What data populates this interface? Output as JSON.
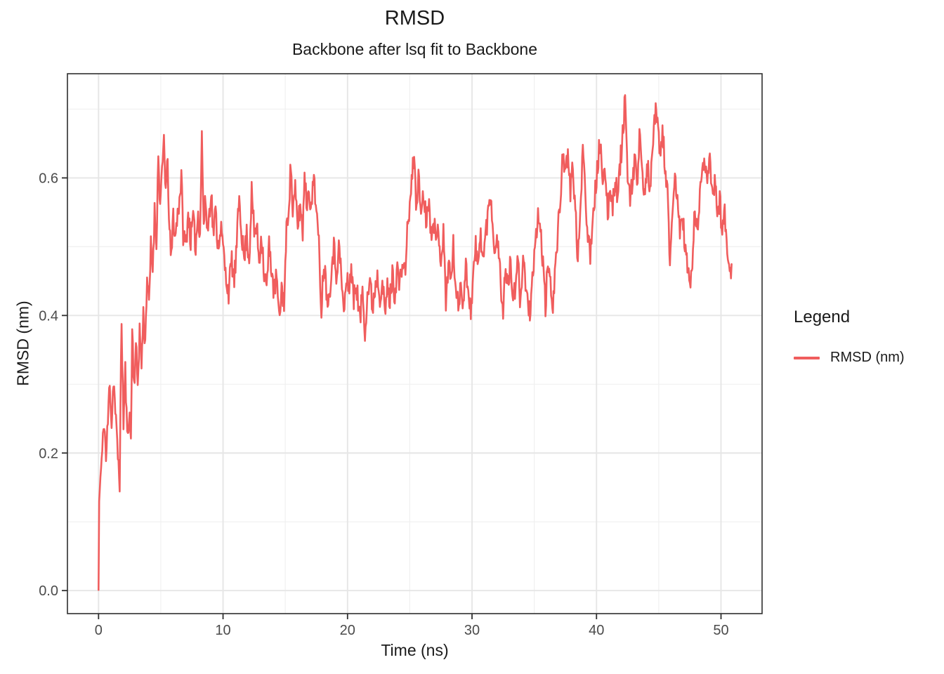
{
  "chart_data": {
    "type": "line",
    "title": "RMSD",
    "subtitle": "Backbone after lsq fit to Backbone",
    "xlabel": "Time (ns)",
    "ylabel": "RMSD (nm)",
    "xlim": [
      -2.5,
      53.3
    ],
    "ylim": [
      -0.0335,
      0.7515
    ],
    "x_major_ticks": [
      0,
      10,
      20,
      30,
      40,
      50
    ],
    "x_tick_labels": [
      "0",
      "10",
      "20",
      "30",
      "40",
      "50"
    ],
    "x_minor_ticks": [
      5,
      15,
      25,
      35,
      45
    ],
    "y_major_ticks": [
      0.0,
      0.2,
      0.4,
      0.6
    ],
    "y_tick_labels": [
      "0.0",
      "0.2",
      "0.4",
      "0.6"
    ],
    "y_minor_ticks": [
      0.1,
      0.3,
      0.5,
      0.7
    ],
    "grid": "major+minor on white panel, black panel border",
    "legend": {
      "title": "Legend",
      "position": "right",
      "entries": [
        {
          "label": "RMSD (nm)",
          "color": "#F05D5D"
        }
      ]
    },
    "series": [
      {
        "name": "RMSD (nm)",
        "color": "#F05D5D",
        "noise": {
          "seed": 11,
          "amplitude": 0.018,
          "dt": 0.05
        },
        "keypoints": [
          [
            0.0,
            0.001
          ],
          [
            0.05,
            0.13
          ],
          [
            0.15,
            0.165
          ],
          [
            0.3,
            0.2
          ],
          [
            0.45,
            0.25
          ],
          [
            0.6,
            0.19
          ],
          [
            0.75,
            0.245
          ],
          [
            0.9,
            0.31
          ],
          [
            1.05,
            0.24
          ],
          [
            1.2,
            0.31
          ],
          [
            1.35,
            0.26
          ],
          [
            1.5,
            0.21
          ],
          [
            1.7,
            0.16
          ],
          [
            1.85,
            0.395
          ],
          [
            2.0,
            0.24
          ],
          [
            2.15,
            0.32
          ],
          [
            2.3,
            0.22
          ],
          [
            2.45,
            0.26
          ],
          [
            2.6,
            0.22
          ],
          [
            2.7,
            0.38
          ],
          [
            2.85,
            0.3
          ],
          [
            3.0,
            0.355
          ],
          [
            3.15,
            0.3
          ],
          [
            3.3,
            0.38
          ],
          [
            3.45,
            0.33
          ],
          [
            3.6,
            0.4
          ],
          [
            3.75,
            0.36
          ],
          [
            3.9,
            0.46
          ],
          [
            4.05,
            0.41
          ],
          [
            4.2,
            0.5
          ],
          [
            4.35,
            0.47
          ],
          [
            4.5,
            0.55
          ],
          [
            4.65,
            0.51
          ],
          [
            4.8,
            0.63
          ],
          [
            4.95,
            0.56
          ],
          [
            5.1,
            0.6
          ],
          [
            5.25,
            0.66
          ],
          [
            5.4,
            0.58
          ],
          [
            5.55,
            0.62
          ],
          [
            5.7,
            0.52
          ],
          [
            5.85,
            0.48
          ],
          [
            6.0,
            0.55
          ],
          [
            6.15,
            0.51
          ],
          [
            6.3,
            0.54
          ],
          [
            6.5,
            0.57
          ],
          [
            6.65,
            0.6
          ],
          [
            6.8,
            0.52
          ],
          [
            7.0,
            0.5
          ],
          [
            7.2,
            0.55
          ],
          [
            7.4,
            0.51
          ],
          [
            7.6,
            0.54
          ],
          [
            7.8,
            0.5
          ],
          [
            8.0,
            0.55
          ],
          [
            8.15,
            0.52
          ],
          [
            8.3,
            0.66
          ],
          [
            8.45,
            0.53
          ],
          [
            8.6,
            0.57
          ],
          [
            8.75,
            0.52
          ],
          [
            8.9,
            0.55
          ],
          [
            9.05,
            0.585
          ],
          [
            9.2,
            0.52
          ],
          [
            9.4,
            0.55
          ],
          [
            9.6,
            0.5
          ],
          [
            9.8,
            0.53
          ],
          [
            10.0,
            0.5
          ],
          [
            10.2,
            0.46
          ],
          [
            10.45,
            0.435
          ],
          [
            10.7,
            0.48
          ],
          [
            10.9,
            0.45
          ],
          [
            11.1,
            0.5
          ],
          [
            11.3,
            0.575
          ],
          [
            11.5,
            0.52
          ],
          [
            11.7,
            0.48
          ],
          [
            11.9,
            0.52
          ],
          [
            12.1,
            0.48
          ],
          [
            12.3,
            0.58
          ],
          [
            12.5,
            0.52
          ],
          [
            12.7,
            0.53
          ],
          [
            12.9,
            0.48
          ],
          [
            13.1,
            0.52
          ],
          [
            13.3,
            0.46
          ],
          [
            13.5,
            0.44
          ],
          [
            13.7,
            0.5
          ],
          [
            13.9,
            0.47
          ],
          [
            14.1,
            0.43
          ],
          [
            14.3,
            0.46
          ],
          [
            14.5,
            0.39
          ],
          [
            14.7,
            0.44
          ],
          [
            14.9,
            0.42
          ],
          [
            15.1,
            0.52
          ],
          [
            15.3,
            0.57
          ],
          [
            15.45,
            0.62
          ],
          [
            15.6,
            0.55
          ],
          [
            15.8,
            0.58
          ],
          [
            16.0,
            0.53
          ],
          [
            16.2,
            0.56
          ],
          [
            16.4,
            0.52
          ],
          [
            16.55,
            0.615
          ],
          [
            16.7,
            0.56
          ],
          [
            16.9,
            0.59
          ],
          [
            17.1,
            0.55
          ],
          [
            17.3,
            0.61
          ],
          [
            17.5,
            0.55
          ],
          [
            17.7,
            0.5
          ],
          [
            17.9,
            0.41
          ],
          [
            18.1,
            0.48
          ],
          [
            18.3,
            0.44
          ],
          [
            18.5,
            0.42
          ],
          [
            18.7,
            0.47
          ],
          [
            18.9,
            0.5
          ],
          [
            19.1,
            0.46
          ],
          [
            19.3,
            0.5
          ],
          [
            19.5,
            0.46
          ],
          [
            19.7,
            0.4
          ],
          [
            19.9,
            0.45
          ],
          [
            20.1,
            0.44
          ],
          [
            20.3,
            0.47
          ],
          [
            20.5,
            0.42
          ],
          [
            20.7,
            0.45
          ],
          [
            20.9,
            0.41
          ],
          [
            21.0,
            0.39
          ],
          [
            21.2,
            0.44
          ],
          [
            21.4,
            0.38
          ],
          [
            21.6,
            0.43
          ],
          [
            21.8,
            0.45
          ],
          [
            22.0,
            0.41
          ],
          [
            22.2,
            0.44
          ],
          [
            22.4,
            0.46
          ],
          [
            22.6,
            0.43
          ],
          [
            22.8,
            0.45
          ],
          [
            23.0,
            0.4
          ],
          [
            23.2,
            0.44
          ],
          [
            23.4,
            0.42
          ],
          [
            23.6,
            0.46
          ],
          [
            23.8,
            0.43
          ],
          [
            24.0,
            0.47
          ],
          [
            24.2,
            0.44
          ],
          [
            24.4,
            0.48
          ],
          [
            24.6,
            0.46
          ],
          [
            24.8,
            0.52
          ],
          [
            25.0,
            0.56
          ],
          [
            25.2,
            0.6
          ],
          [
            25.35,
            0.64
          ],
          [
            25.5,
            0.56
          ],
          [
            25.7,
            0.6
          ],
          [
            25.9,
            0.55
          ],
          [
            26.1,
            0.58
          ],
          [
            26.3,
            0.54
          ],
          [
            26.5,
            0.57
          ],
          [
            26.7,
            0.52
          ],
          [
            26.9,
            0.55
          ],
          [
            27.1,
            0.5
          ],
          [
            27.3,
            0.53
          ],
          [
            27.5,
            0.48
          ],
          [
            27.7,
            0.52
          ],
          [
            27.9,
            0.42
          ],
          [
            28.1,
            0.48
          ],
          [
            28.3,
            0.45
          ],
          [
            28.5,
            0.5
          ],
          [
            28.7,
            0.44
          ],
          [
            28.9,
            0.41
          ],
          [
            29.1,
            0.45
          ],
          [
            29.3,
            0.42
          ],
          [
            29.5,
            0.47
          ],
          [
            29.7,
            0.44
          ],
          [
            29.9,
            0.405
          ],
          [
            30.1,
            0.46
          ],
          [
            30.3,
            0.5
          ],
          [
            30.5,
            0.47
          ],
          [
            30.7,
            0.52
          ],
          [
            30.9,
            0.48
          ],
          [
            31.1,
            0.52
          ],
          [
            31.3,
            0.55
          ],
          [
            31.5,
            0.58
          ],
          [
            31.7,
            0.52
          ],
          [
            31.9,
            0.49
          ],
          [
            32.1,
            0.52
          ],
          [
            32.3,
            0.44
          ],
          [
            32.5,
            0.41
          ],
          [
            32.7,
            0.47
          ],
          [
            32.9,
            0.44
          ],
          [
            33.1,
            0.48
          ],
          [
            33.3,
            0.42
          ],
          [
            33.5,
            0.44
          ],
          [
            33.7,
            0.48
          ],
          [
            33.9,
            0.41
          ],
          [
            34.1,
            0.5
          ],
          [
            34.3,
            0.44
          ],
          [
            34.5,
            0.42
          ],
          [
            34.7,
            0.4
          ],
          [
            34.9,
            0.46
          ],
          [
            35.1,
            0.5
          ],
          [
            35.3,
            0.55
          ],
          [
            35.5,
            0.52
          ],
          [
            35.7,
            0.48
          ],
          [
            35.9,
            0.41
          ],
          [
            36.1,
            0.48
          ],
          [
            36.3,
            0.44
          ],
          [
            36.5,
            0.42
          ],
          [
            36.7,
            0.47
          ],
          [
            36.9,
            0.52
          ],
          [
            37.1,
            0.57
          ],
          [
            37.3,
            0.645
          ],
          [
            37.5,
            0.6
          ],
          [
            37.7,
            0.63
          ],
          [
            37.9,
            0.58
          ],
          [
            38.1,
            0.62
          ],
          [
            38.3,
            0.55
          ],
          [
            38.5,
            0.48
          ],
          [
            38.7,
            0.54
          ],
          [
            38.9,
            0.66
          ],
          [
            39.1,
            0.58
          ],
          [
            39.3,
            0.52
          ],
          [
            39.5,
            0.49
          ],
          [
            39.7,
            0.55
          ],
          [
            39.9,
            0.58
          ],
          [
            40.1,
            0.62
          ],
          [
            40.3,
            0.655
          ],
          [
            40.5,
            0.58
          ],
          [
            40.7,
            0.61
          ],
          [
            40.9,
            0.55
          ],
          [
            41.1,
            0.59
          ],
          [
            41.3,
            0.56
          ],
          [
            41.5,
            0.6
          ],
          [
            41.7,
            0.57
          ],
          [
            41.9,
            0.62
          ],
          [
            42.1,
            0.66
          ],
          [
            42.3,
            0.72
          ],
          [
            42.5,
            0.6
          ],
          [
            42.7,
            0.56
          ],
          [
            42.9,
            0.6
          ],
          [
            43.1,
            0.63
          ],
          [
            43.3,
            0.58
          ],
          [
            43.5,
            0.68
          ],
          [
            43.7,
            0.6
          ],
          [
            43.9,
            0.57
          ],
          [
            44.1,
            0.62
          ],
          [
            44.3,
            0.58
          ],
          [
            44.5,
            0.63
          ],
          [
            44.7,
            0.695
          ],
          [
            44.9,
            0.68
          ],
          [
            45.1,
            0.63
          ],
          [
            45.3,
            0.665
          ],
          [
            45.5,
            0.62
          ],
          [
            45.7,
            0.58
          ],
          [
            45.9,
            0.46
          ],
          [
            46.1,
            0.55
          ],
          [
            46.3,
            0.6
          ],
          [
            46.5,
            0.57
          ],
          [
            46.7,
            0.52
          ],
          [
            46.9,
            0.55
          ],
          [
            47.1,
            0.5
          ],
          [
            47.3,
            0.47
          ],
          [
            47.5,
            0.44
          ],
          [
            47.7,
            0.48
          ],
          [
            47.9,
            0.55
          ],
          [
            48.1,
            0.52
          ],
          [
            48.3,
            0.57
          ],
          [
            48.5,
            0.62
          ],
          [
            48.7,
            0.63
          ],
          [
            48.9,
            0.6
          ],
          [
            49.1,
            0.62
          ],
          [
            49.3,
            0.57
          ],
          [
            49.5,
            0.6
          ],
          [
            49.7,
            0.55
          ],
          [
            49.9,
            0.57
          ],
          [
            50.1,
            0.52
          ],
          [
            50.3,
            0.55
          ],
          [
            50.5,
            0.5
          ],
          [
            50.7,
            0.48
          ],
          [
            50.85,
            0.46
          ]
        ]
      }
    ]
  },
  "style": {
    "line_width": 2.6,
    "panel_border_color": "#2f2f2f",
    "major_grid_color": "#e6e6e6",
    "minor_grid_color": "#f0f0f0",
    "tick_color": "#2f2f2f",
    "tick_label_color": "#4b4b4b",
    "text_color": "#1a1a1a"
  }
}
